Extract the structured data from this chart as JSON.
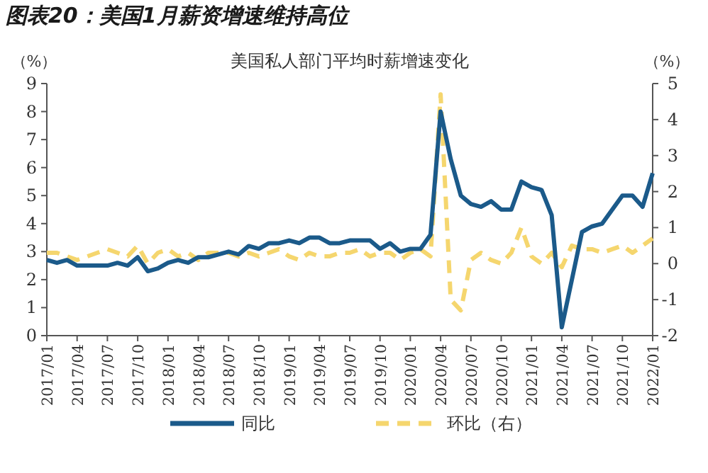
{
  "chart_data": {
    "type": "line",
    "title": "图表20：美国1月薪资增速维持高位",
    "subtitle": "美国私人部门平均时薪增速变化",
    "ylabel": "（%）",
    "y2label": "（%）",
    "categories": [
      "2017/01",
      null,
      null,
      "2017/04",
      null,
      null,
      "2017/07",
      null,
      null,
      "2017/10",
      null,
      null,
      "2018/01",
      null,
      null,
      "2018/04",
      null,
      null,
      "2018/07",
      null,
      null,
      "2018/10",
      null,
      null,
      "2019/01",
      null,
      null,
      "2019/04",
      null,
      null,
      "2019/07",
      null,
      null,
      "2019/10",
      null,
      null,
      "2020/01",
      null,
      null,
      "2020/04",
      null,
      null,
      "2020/07",
      null,
      null,
      "2020/10",
      null,
      null,
      "2021/01",
      null,
      null,
      "2021/04",
      null,
      null,
      "2021/07",
      null,
      null,
      "2021/10",
      null,
      null,
      "2022/01"
    ],
    "series": [
      {
        "name": "同比",
        "color": "#1b5a8a",
        "line_style": "solid",
        "values": [
          2.7,
          2.6,
          2.7,
          2.5,
          2.5,
          2.5,
          2.5,
          2.6,
          2.5,
          2.8,
          2.3,
          2.4,
          2.6,
          2.7,
          2.6,
          2.8,
          2.8,
          2.9,
          3.0,
          2.9,
          3.2,
          3.1,
          3.3,
          3.3,
          3.4,
          3.3,
          3.5,
          3.5,
          3.3,
          3.3,
          3.4,
          3.4,
          3.4,
          3.1,
          3.3,
          3.0,
          3.1,
          3.1,
          3.6,
          8.0,
          6.3,
          5.0,
          4.7,
          4.6,
          4.8,
          4.5,
          4.5,
          5.5,
          5.3,
          5.2,
          4.3,
          0.3,
          2.0,
          3.7,
          3.9,
          4.0,
          4.5,
          5.0,
          5.0,
          4.6,
          5.8
        ]
      },
      {
        "name": "环比（右）",
        "color": "#f5d66e",
        "line_style": "dashed",
        "axis": "y2",
        "values": [
          0.3,
          0.3,
          0.2,
          0.1,
          0.2,
          0.3,
          0.4,
          0.3,
          0.2,
          0.5,
          0.0,
          0.3,
          0.4,
          0.2,
          0.3,
          0.1,
          0.3,
          0.3,
          0.3,
          0.2,
          0.3,
          0.2,
          0.3,
          0.4,
          0.2,
          0.1,
          0.3,
          0.2,
          0.2,
          0.3,
          0.3,
          0.4,
          0.2,
          0.3,
          0.3,
          0.1,
          0.3,
          0.4,
          0.2,
          4.7,
          -1.0,
          -1.3,
          0.1,
          0.3,
          0.1,
          0.0,
          0.3,
          1.0,
          0.2,
          0.0,
          0.3,
          -0.1,
          0.5,
          0.4,
          0.4,
          0.3,
          0.4,
          0.5,
          0.3,
          0.5,
          0.7
        ]
      }
    ],
    "ylim": [
      0,
      9
    ],
    "yticks": [
      0,
      1,
      2,
      3,
      4,
      5,
      6,
      7,
      8,
      9
    ],
    "y2lim": [
      -2,
      5
    ],
    "y2ticks": [
      -2,
      -1,
      0,
      1,
      2,
      3,
      4,
      5
    ],
    "legend": "bottom"
  }
}
